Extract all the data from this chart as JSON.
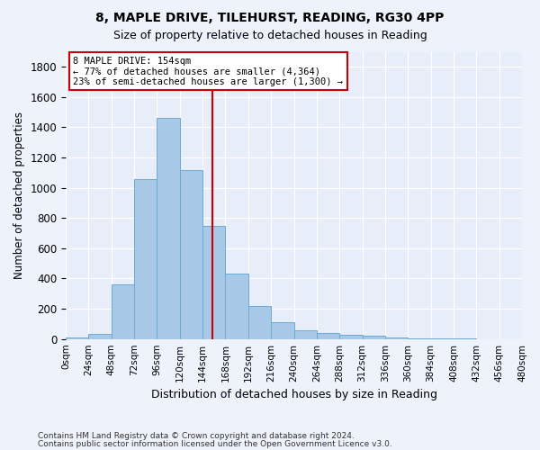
{
  "title1": "8, MAPLE DRIVE, TILEHURST, READING, RG30 4PP",
  "title2": "Size of property relative to detached houses in Reading",
  "xlabel": "Distribution of detached houses by size in Reading",
  "ylabel": "Number of detached properties",
  "bin_labels": [
    "0sqm",
    "24sqm",
    "48sqm",
    "72sqm",
    "96sqm",
    "120sqm",
    "144sqm",
    "168sqm",
    "192sqm",
    "216sqm",
    "240sqm",
    "264sqm",
    "288sqm",
    "312sqm",
    "336sqm",
    "360sqm",
    "384sqm",
    "408sqm",
    "432sqm",
    "456sqm",
    "480sqm"
  ],
  "bin_edges": [
    0,
    24,
    48,
    72,
    96,
    120,
    144,
    168,
    192,
    216,
    240,
    264,
    288,
    312,
    336,
    360,
    384,
    408,
    432,
    456,
    480
  ],
  "bar_values": [
    10,
    35,
    360,
    1060,
    1460,
    1115,
    750,
    430,
    220,
    110,
    55,
    40,
    25,
    20,
    10,
    5,
    3,
    2,
    1,
    1
  ],
  "bar_color": "#a8c8e8",
  "bar_edge_color": "#6aaad4",
  "vline_x": 154,
  "vline_color": "#cc0000",
  "annotation_text": "8 MAPLE DRIVE: 154sqm\n← 77% of detached houses are smaller (4,364)\n23% of semi-detached houses are larger (1,300) →",
  "annotation_box_color": "#ffffff",
  "annotation_box_edge": "#cc0000",
  "ylim": [
    0,
    1900
  ],
  "yticks": [
    0,
    200,
    400,
    600,
    800,
    1000,
    1200,
    1400,
    1600,
    1800
  ],
  "footer1": "Contains HM Land Registry data © Crown copyright and database right 2024.",
  "footer2": "Contains public sector information licensed under the Open Government Licence v3.0.",
  "bg_color": "#eef2fb",
  "plot_bg_color": "#e8eef9"
}
